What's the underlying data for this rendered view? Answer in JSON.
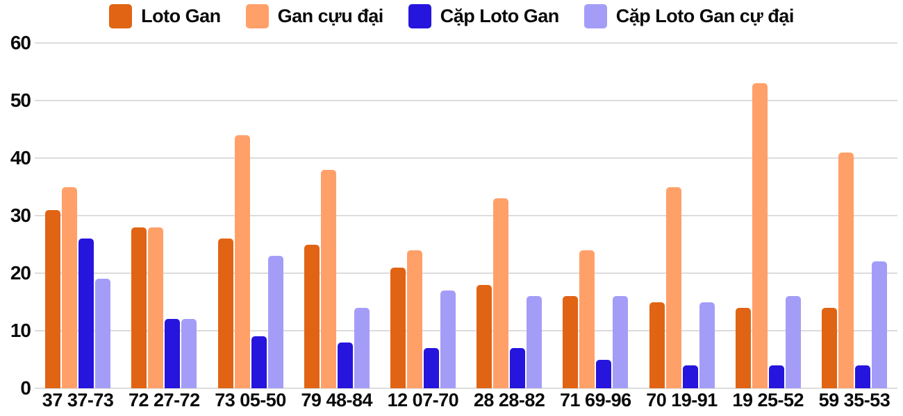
{
  "chart_data": {
    "type": "bar",
    "title": "",
    "xlabel": "",
    "ylabel": "",
    "categories": [
      "37 37-73",
      "72 27-72",
      "73 05-50",
      "79 48-84",
      "12 07-70",
      "28 28-82",
      "71 69-96",
      "70 19-91",
      "19 25-52",
      "59 35-53"
    ],
    "series": [
      {
        "name": "Loto Gan",
        "color": "#e06414",
        "values": [
          31,
          28,
          26,
          25,
          21,
          18,
          16,
          15,
          14,
          14
        ]
      },
      {
        "name": "Gan cựu đại",
        "color": "#ffa069",
        "values": [
          35,
          28,
          44,
          38,
          24,
          33,
          24,
          35,
          53,
          41
        ]
      },
      {
        "name": "Cặp Loto Gan",
        "color": "#2615dc",
        "values": [
          26,
          12,
          9,
          8,
          7,
          7,
          5,
          4,
          4,
          4
        ]
      },
      {
        "name": "Cặp Loto Gan cự đại",
        "color": "#a49df7",
        "values": [
          19,
          12,
          23,
          14,
          17,
          16,
          16,
          15,
          16,
          22
        ]
      }
    ],
    "ylim": [
      0,
      60
    ],
    "yticks": [
      0,
      10,
      20,
      30,
      40,
      50,
      60
    ],
    "grid": true,
    "legend_position": "top"
  },
  "colors": {
    "background": "#ffffff",
    "grid": "#dcdcdc",
    "axis_text": "#0a0a0a"
  }
}
